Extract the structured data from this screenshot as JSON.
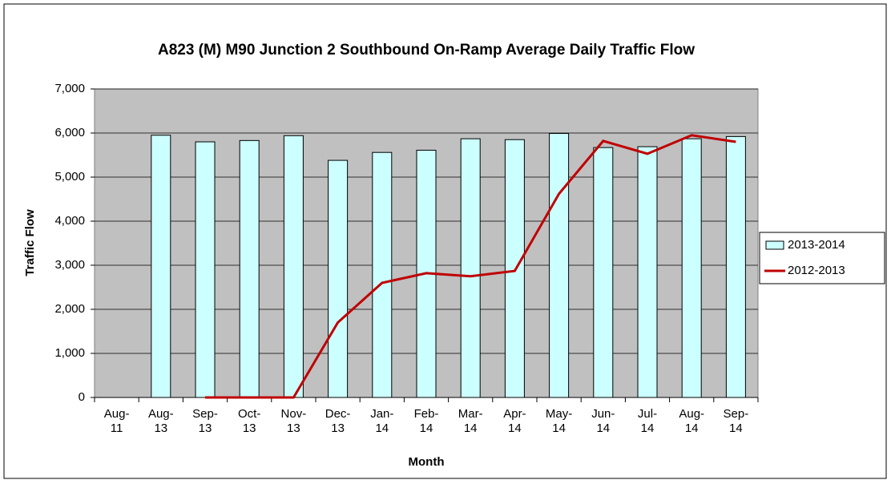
{
  "chart_data": {
    "type": "bar_line",
    "title": "A823 (M) M90 Junction 2 Southbound On-Ramp Average Daily Traffic Flow",
    "xlabel": "Month",
    "ylabel": "Traffic Flow",
    "categories": [
      "Aug-11",
      "Aug-13",
      "Sep-13",
      "Oct-13",
      "Nov-13",
      "Dec-13",
      "Jan-14",
      "Feb-14",
      "Mar-14",
      "Apr-14",
      "May-14",
      "Jun-14",
      "Jul-14",
      "Aug-14",
      "Sep-14"
    ],
    "series": [
      {
        "name": "2013-2014",
        "type": "bar",
        "color": "#ccffff",
        "values": [
          null,
          5950,
          5800,
          5830,
          5940,
          5380,
          5560,
          5610,
          5870,
          5850,
          5990,
          5670,
          5690,
          5870,
          5920
        ]
      },
      {
        "name": "2012-2013",
        "type": "line",
        "color": "#c00000",
        "values": [
          null,
          null,
          0,
          0,
          0,
          1700,
          2600,
          2820,
          2750,
          2870,
          4620,
          5820,
          5530,
          5950,
          5800
        ]
      }
    ],
    "ylim": [
      0,
      7000
    ],
    "yticks": [
      0,
      {
        "value": 1000,
        "label": "1,000"
      },
      {
        "value": 2000,
        "label": "2,000"
      },
      {
        "value": 3000,
        "label": "3,000"
      },
      {
        "value": 4000,
        "label": "4,000"
      },
      {
        "value": 5000,
        "label": "5,000"
      },
      {
        "value": 6000,
        "label": "6,000"
      },
      {
        "value": 7000,
        "label": "7,000"
      }
    ],
    "grid": true,
    "legend": "right"
  }
}
